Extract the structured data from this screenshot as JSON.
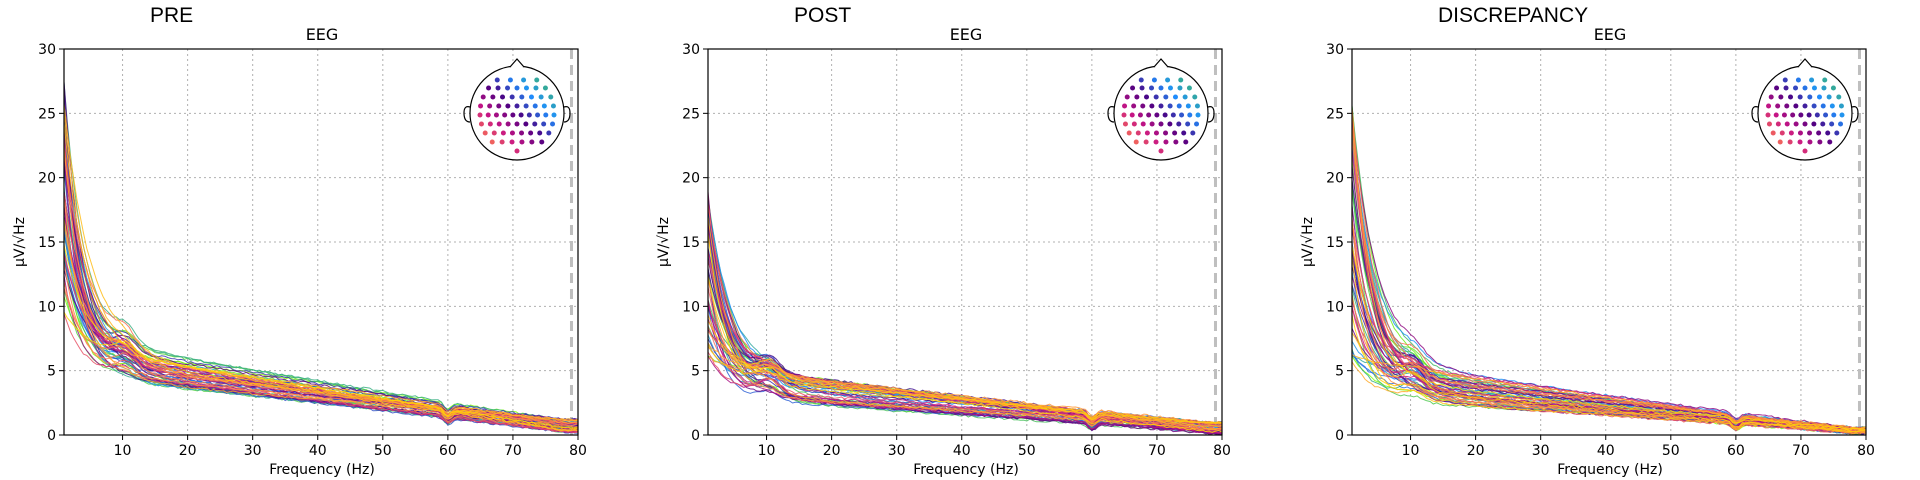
{
  "chart_data": [
    {
      "type": "line",
      "title": "PRE",
      "subtitle": "EEG",
      "xlabel": "Frequency (Hz)",
      "ylabel": "µV/√Hz",
      "xlim": [
        1,
        80
      ],
      "ylim": [
        0,
        30
      ],
      "xticks": [
        "10",
        "20",
        "30",
        "40",
        "50",
        "60",
        "70",
        "80"
      ],
      "yticks": [
        "0",
        "5",
        "10",
        "15",
        "20",
        "25",
        "30"
      ],
      "grid": true,
      "highpass_marker_hz": 79,
      "inset": "sensor-topomap top-right",
      "series_summary": {
        "count": 60,
        "start_range": [
          9,
          28
        ],
        "knee_value": [
          4,
          7
        ],
        "tail_range": [
          0.2,
          1.2
        ],
        "line_noise_dip_hz": 60
      }
    },
    {
      "type": "line",
      "title": "POST",
      "subtitle": "EEG",
      "xlabel": "Frequency (Hz)",
      "ylabel": "µV/√Hz",
      "xlim": [
        1,
        80
      ],
      "ylim": [
        0,
        30
      ],
      "xticks": [
        "10",
        "20",
        "30",
        "40",
        "50",
        "60",
        "70",
        "80"
      ],
      "yticks": [
        "0",
        "5",
        "10",
        "15",
        "20",
        "25",
        "30"
      ],
      "grid": true,
      "highpass_marker_hz": 79,
      "inset": "sensor-topomap top-right",
      "series_summary": {
        "count": 60,
        "start_range": [
          6,
          19
        ],
        "knee_value": [
          2.5,
          5
        ],
        "tail_range": [
          0.1,
          1.0
        ],
        "line_noise_dip_hz": 60
      }
    },
    {
      "type": "line",
      "title": "DISCREPANCY",
      "subtitle": "EEG",
      "xlabel": "Frequency (Hz)",
      "ylabel": "µV/√Hz",
      "xlim": [
        1,
        80
      ],
      "ylim": [
        0,
        30
      ],
      "xticks": [
        "10",
        "20",
        "30",
        "40",
        "50",
        "60",
        "70",
        "80"
      ],
      "yticks": [
        "0",
        "5",
        "10",
        "15",
        "20",
        "25",
        "30"
      ],
      "grid": true,
      "highpass_marker_hz": 79,
      "inset": "sensor-topomap top-right",
      "series_summary": {
        "count": 60,
        "start_range": [
          5,
          26
        ],
        "knee_value": [
          2.5,
          5.5
        ],
        "tail_range": [
          0.1,
          0.6
        ],
        "line_noise_dip_hz": 60
      }
    }
  ],
  "colors": {
    "grid": "#b0b0b0",
    "marker": "#bfbfbf",
    "sensor_palette": [
      "#7fff00",
      "#3cb371",
      "#1e90ff",
      "#4b0082",
      "#c71585",
      "#ff7f50",
      "#ffd700"
    ]
  }
}
